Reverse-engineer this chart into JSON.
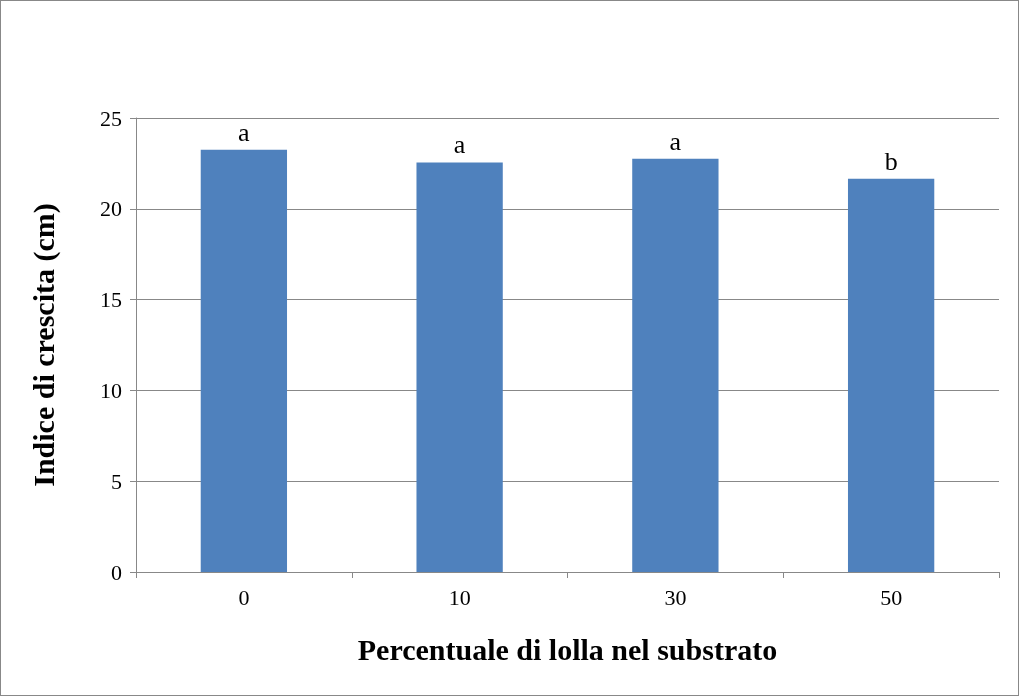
{
  "chart_data": {
    "type": "bar",
    "xlabel": "Percentuale di lolla nel substrato",
    "ylabel": "Indice di crescita (cm)",
    "categories": [
      "0",
      "10",
      "30",
      "50"
    ],
    "values": [
      23.25,
      22.55,
      22.75,
      21.65
    ],
    "color": "#4f81bd",
    "ylim": [
      0,
      25
    ],
    "yticks": [
      0,
      5,
      10,
      15,
      20,
      25
    ],
    "grid": "y",
    "annotations": [
      {
        "text": "a",
        "x": "0",
        "y": 23.25
      },
      {
        "text": "a",
        "x": "10",
        "y": 22.55
      },
      {
        "text": "a",
        "x": "30",
        "y": 22.75
      },
      {
        "text": "b",
        "x": "50",
        "y": 21.65
      }
    ]
  }
}
